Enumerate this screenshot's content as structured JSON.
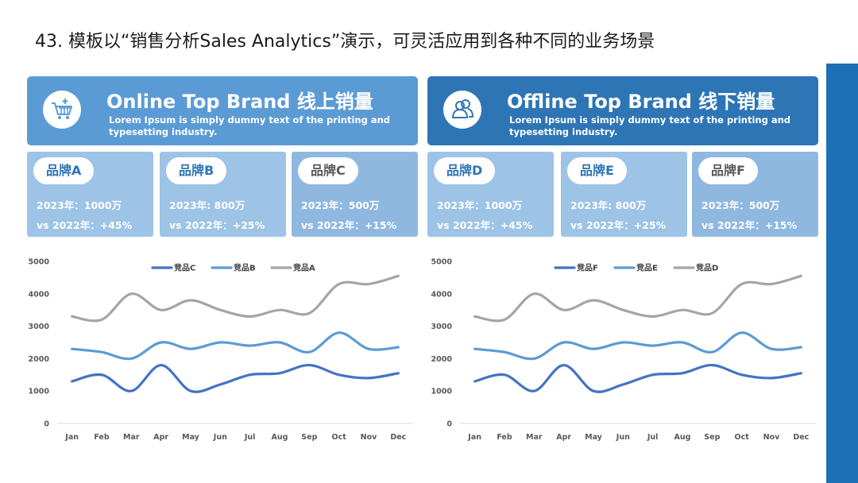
{
  "slide_title": "43. 模板以“销售分析Sales Analytics”演示，可灵活应用到各种不同的业务场景",
  "online": {
    "title": "Online Top Brand 线上销量",
    "subtitle": "Lorem Ipsum is simply dummy text of the printing and typesetting industry.",
    "icon": "shopping-cart-icon",
    "cards": [
      {
        "brand": "品牌A",
        "line1": "2023年：1000万",
        "line2": "vs 2022年：+45%"
      },
      {
        "brand": "品牌B",
        "line1": "2023年: 800万",
        "line2": "vs 2022年：+25%"
      },
      {
        "brand": "品牌C",
        "line1": "2023年：500万",
        "line2": "vs 2022年：+15%"
      }
    ]
  },
  "offline": {
    "title": "Offline Top Brand 线下销量",
    "subtitle": "Lorem Ipsum is simply dummy text of the printing and typesetting industry.",
    "icon": "users-icon",
    "cards": [
      {
        "brand": "品牌D",
        "line1": "2023年：1000万",
        "line2": "vs 2022年：+45%"
      },
      {
        "brand": "品牌E",
        "line1": "2023年: 800万",
        "line2": "vs 2022年：+25%"
      },
      {
        "brand": "品牌F",
        "line1": "2023年：500万",
        "line2": "vs 2022年：+15%"
      }
    ]
  },
  "colors": {
    "accent_dark": "#2e75b6",
    "accent_light": "#5b9bd5",
    "card_light": "#9dc3e6",
    "series_dark": "#4472c4",
    "series_mid": "#5b9bd5",
    "series_gray": "#a5a5a5"
  },
  "chart_data": [
    {
      "type": "line",
      "categories": [
        "Jan",
        "Feb",
        "Mar",
        "Apr",
        "May",
        "Jun",
        "Jul",
        "Aug",
        "Sep",
        "Oct",
        "Nov",
        "Dec"
      ],
      "ylim": [
        0,
        5000
      ],
      "yticks": [
        0,
        1000,
        2000,
        3000,
        4000,
        5000
      ],
      "smooth": true,
      "grid": false,
      "legend": "top",
      "series": [
        {
          "name": "竞品C",
          "color": "#4472c4",
          "values": [
            1300,
            1500,
            1000,
            1800,
            1000,
            1200,
            1500,
            1550,
            1800,
            1500,
            1400,
            1550
          ]
        },
        {
          "name": "竞品B",
          "color": "#5b9bd5",
          "values": [
            2300,
            2200,
            2000,
            2500,
            2300,
            2500,
            2400,
            2500,
            2200,
            2800,
            2300,
            2350
          ]
        },
        {
          "name": "竞品A",
          "color": "#a5a5a5",
          "values": [
            3300,
            3200,
            4000,
            3500,
            3800,
            3500,
            3300,
            3500,
            3400,
            4300,
            4300,
            4550
          ]
        }
      ]
    },
    {
      "type": "line",
      "categories": [
        "Jan",
        "Feb",
        "Mar",
        "Apr",
        "May",
        "Jun",
        "Jul",
        "Aug",
        "Sep",
        "Oct",
        "Nov",
        "Dec"
      ],
      "ylim": [
        0,
        5000
      ],
      "yticks": [
        0,
        1000,
        2000,
        3000,
        4000,
        5000
      ],
      "smooth": true,
      "grid": false,
      "legend": "top",
      "series": [
        {
          "name": "竞品F",
          "color": "#4472c4",
          "values": [
            1300,
            1500,
            1000,
            1800,
            1000,
            1200,
            1500,
            1550,
            1800,
            1500,
            1400,
            1550
          ]
        },
        {
          "name": "竞品E",
          "color": "#5b9bd5",
          "values": [
            2300,
            2200,
            2000,
            2500,
            2300,
            2500,
            2400,
            2500,
            2200,
            2800,
            2300,
            2350
          ]
        },
        {
          "name": "竞品D",
          "color": "#a5a5a5",
          "values": [
            3300,
            3200,
            4000,
            3500,
            3800,
            3500,
            3300,
            3500,
            3400,
            4300,
            4300,
            4550
          ]
        }
      ]
    }
  ]
}
